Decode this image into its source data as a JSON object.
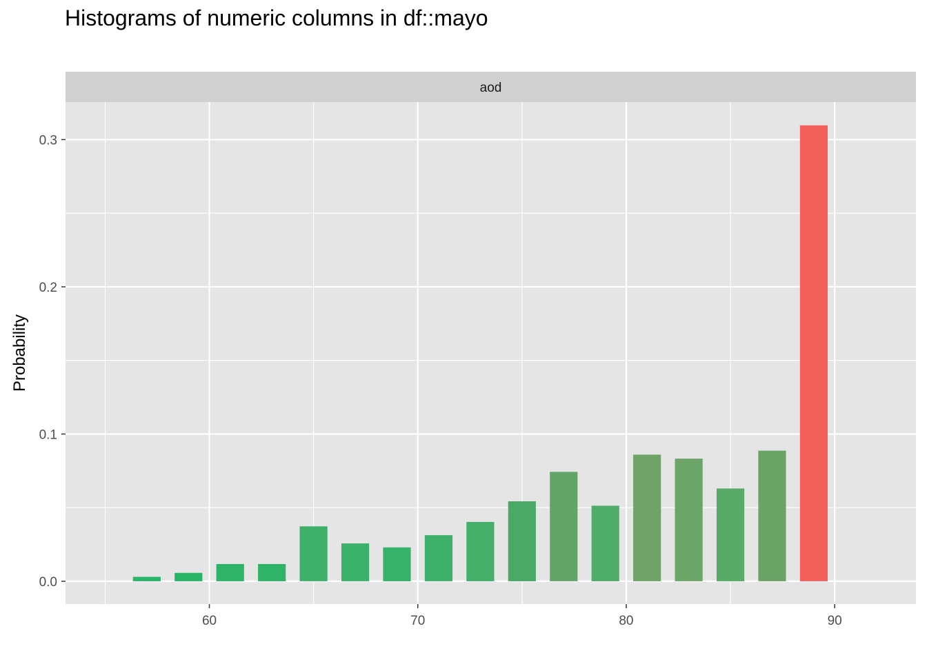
{
  "chart_data": {
    "type": "bar",
    "title": "Histograms of numeric columns in df::mayo",
    "facet_label": "aod",
    "xlabel": "",
    "ylabel": "Probability",
    "xlim": [
      53.1,
      93.9
    ],
    "ylim": [
      -0.0155,
      0.3255
    ],
    "x_ticks": [
      60,
      70,
      80,
      90
    ],
    "y_ticks": [
      0.0,
      0.1,
      0.2,
      0.3
    ],
    "y_tick_labels": [
      "0.0",
      "0.1",
      "0.2",
      "0.3"
    ],
    "x_minor_gridlines": [
      55,
      65,
      75,
      85
    ],
    "y_minor_gridlines": [
      0.05,
      0.15,
      0.25
    ],
    "grid": true,
    "bin_width": 2.0,
    "bar_width": 1.33,
    "x": [
      57,
      59,
      61,
      63,
      65,
      67,
      69,
      71,
      73,
      75,
      77,
      79,
      81,
      83,
      85,
      87,
      89
    ],
    "values": [
      0.003,
      0.0057,
      0.0117,
      0.0117,
      0.0373,
      0.0257,
      0.023,
      0.0313,
      0.0403,
      0.0543,
      0.0743,
      0.0513,
      0.086,
      0.0833,
      0.063,
      0.0887,
      0.3097
    ],
    "bar_colors": [
      "#2ab468",
      "#2ab468",
      "#2eb367",
      "#2eb367",
      "#3fb06a",
      "#3cb16a",
      "#36b26a",
      "#3fb06a",
      "#44af69",
      "#4ba968",
      "#63a468",
      "#50ad69",
      "#6ea466",
      "#6ba568",
      "#57aa67",
      "#6ca465",
      "#f4605c"
    ],
    "colors": {
      "panel_background": "#e5e5e5",
      "strip_background": "#d0d0d0",
      "gridline": "#ffffff",
      "tick_text": "#4d4d4d",
      "tick_mark": "#333333"
    }
  }
}
